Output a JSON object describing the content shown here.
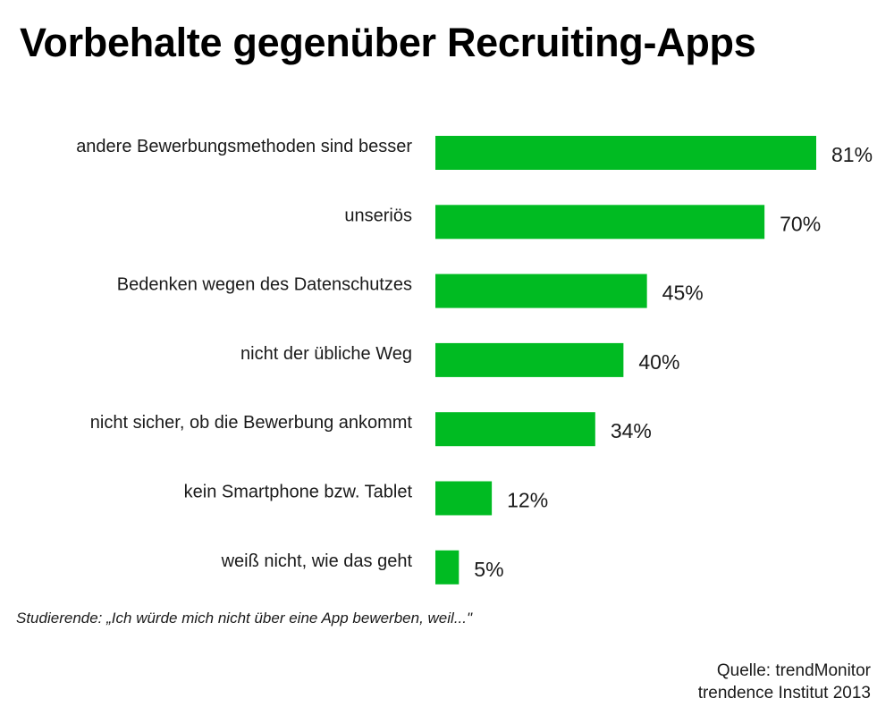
{
  "title": "Vorbehalte gegenüber Recruiting-Apps",
  "footnote": "Studierende:  „Ich würde mich nicht über eine App bewerben, weil...\"",
  "source": {
    "line1": "Quelle: trendMonitor",
    "line2": "trendence Institut 2013"
  },
  "colors": {
    "bar": "#00bb22"
  },
  "chart_data": {
    "type": "bar",
    "orientation": "horizontal",
    "categories": [
      "andere Bewerbungsmethoden sind besser",
      "unseriös",
      "Bedenken wegen des Datenschutzes",
      "nicht der übliche Weg",
      "nicht sicher, ob die Bewerbung ankommt",
      "kein Smartphone bzw. Tablet",
      "weiß nicht, wie das geht"
    ],
    "values": [
      81,
      70,
      45,
      40,
      34,
      12,
      5
    ],
    "value_labels": [
      "81%",
      "70%",
      "45%",
      "40%",
      "34%",
      "12%",
      "5%"
    ],
    "xlim": [
      0,
      100
    ],
    "grid": false,
    "legend": "none"
  }
}
